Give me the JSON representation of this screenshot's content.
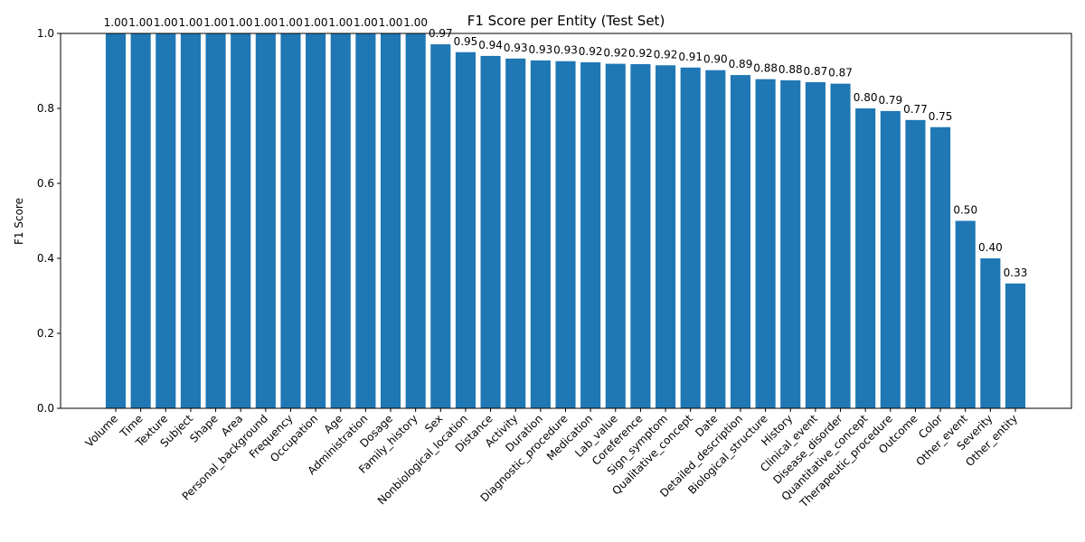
{
  "chart_data": {
    "type": "bar",
    "title": "F1 Score per Entity (Test Set)",
    "xlabel": "",
    "ylabel": "F1 Score",
    "ylim": [
      0,
      1.0
    ],
    "yticks": [
      "0.0",
      "0.2",
      "0.4",
      "0.6",
      "0.8",
      "1.0"
    ],
    "grid": false,
    "bar_color": "#1f77b4",
    "categories": [
      "Volume",
      "Time",
      "Texture",
      "Subject",
      "Shape",
      "Area",
      "Personal_background",
      "Frequency",
      "Occupation",
      "Age",
      "Administration",
      "Dosage",
      "Family_history",
      "Sex",
      "Nonbiological_location",
      "Distance",
      "Activity",
      "Duration",
      "Diagnostic_procedure",
      "Medication",
      "Lab_value",
      "Coreference",
      "Sign_symptom",
      "Qualitative_concept",
      "Date",
      "Detailed_description",
      "Biological_structure",
      "History",
      "Clinical_event",
      "Disease_disorder",
      "Quantitative_concept",
      "Therapeutic_procedure",
      "Outcome",
      "Color",
      "Other_event",
      "Severity",
      "Other_entity"
    ],
    "values": [
      1.0,
      1.0,
      1.0,
      1.0,
      1.0,
      1.0,
      1.0,
      1.0,
      1.0,
      1.0,
      1.0,
      1.0,
      1.0,
      0.971,
      0.95,
      0.94,
      0.933,
      0.928,
      0.926,
      0.923,
      0.919,
      0.918,
      0.915,
      0.909,
      0.902,
      0.889,
      0.878,
      0.875,
      0.87,
      0.866,
      0.8,
      0.793,
      0.769,
      0.75,
      0.5,
      0.4,
      0.333
    ],
    "value_labels": [
      "1.00",
      "1.00",
      "1.00",
      "1.00",
      "1.00",
      "1.00",
      "1.00",
      "1.00",
      "1.00",
      "1.00",
      "1.00",
      "1.00",
      "1.00",
      "0.97",
      "0.95",
      "0.94",
      "0.93",
      "0.93",
      "0.93",
      "0.92",
      "0.92",
      "0.92",
      "0.92",
      "0.91",
      "0.90",
      "0.89",
      "0.88",
      "0.88",
      "0.87",
      "0.87",
      "0.80",
      "0.79",
      "0.77",
      "0.75",
      "0.50",
      "0.40",
      "0.33"
    ]
  }
}
